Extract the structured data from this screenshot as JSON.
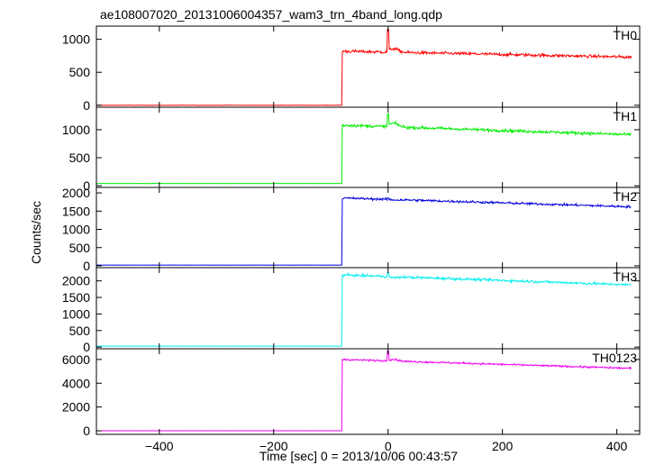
{
  "chart_data": {
    "type": "line",
    "title": "ae108007020_20131006004357_wam3_trn_4band_long.qdp",
    "xlabel": "Time [sec] 0 = 2013/10/06 00:43:57",
    "ylabel": "Counts/sec",
    "xlim": [
      -510,
      440
    ],
    "xticks": [
      -400,
      -200,
      0,
      200,
      400
    ],
    "xtick_labels": [
      "−400",
      "−200",
      "0",
      "200",
      "400"
    ],
    "grid": false,
    "step_time": -80,
    "panels": [
      {
        "name": "TH0",
        "color": "#ff0000",
        "ylim": [
          -30,
          1200
        ],
        "yticks": [
          0,
          500,
          1000
        ],
        "pre_level": 0,
        "post_start": 820,
        "post_end": 730,
        "noise": 28,
        "spike_time": 0,
        "spike_peak": 1150,
        "secondary_peak": 880
      },
      {
        "name": "TH1",
        "color": "#00ee00",
        "ylim": [
          -30,
          1400
        ],
        "yticks": [
          0,
          500,
          1000
        ],
        "pre_level": 40,
        "post_start": 1080,
        "post_end": 910,
        "noise": 32,
        "spike_time": 0,
        "spike_peak": 1280,
        "secondary_peak": 1150
      },
      {
        "name": "TH2",
        "color": "#0000dd",
        "ylim": [
          -50,
          2150
        ],
        "yticks": [
          0,
          500,
          1000,
          1500,
          2000
        ],
        "pre_level": 20,
        "post_start": 1860,
        "post_end": 1620,
        "noise": 38,
        "spike_time": 0,
        "spike_peak": 1860,
        "secondary_peak": 1850
      },
      {
        "name": "TH3",
        "color": "#00eeee",
        "ylim": [
          -50,
          2400
        ],
        "yticks": [
          0,
          500,
          1000,
          1500,
          2000
        ],
        "pre_level": 30,
        "post_start": 2180,
        "post_end": 1880,
        "noise": 45,
        "spike_time": 0,
        "spike_peak": 2250,
        "secondary_peak": 2150
      },
      {
        "name": "TH0123",
        "color": "#ee00ee",
        "ylim": [
          -300,
          6900
        ],
        "yticks": [
          0,
          2000,
          4000,
          6000
        ],
        "pre_level": 0,
        "post_start": 6000,
        "post_end": 5250,
        "noise": 90,
        "spike_time": 0,
        "spike_peak": 6700,
        "secondary_peak": 6150
      }
    ]
  }
}
